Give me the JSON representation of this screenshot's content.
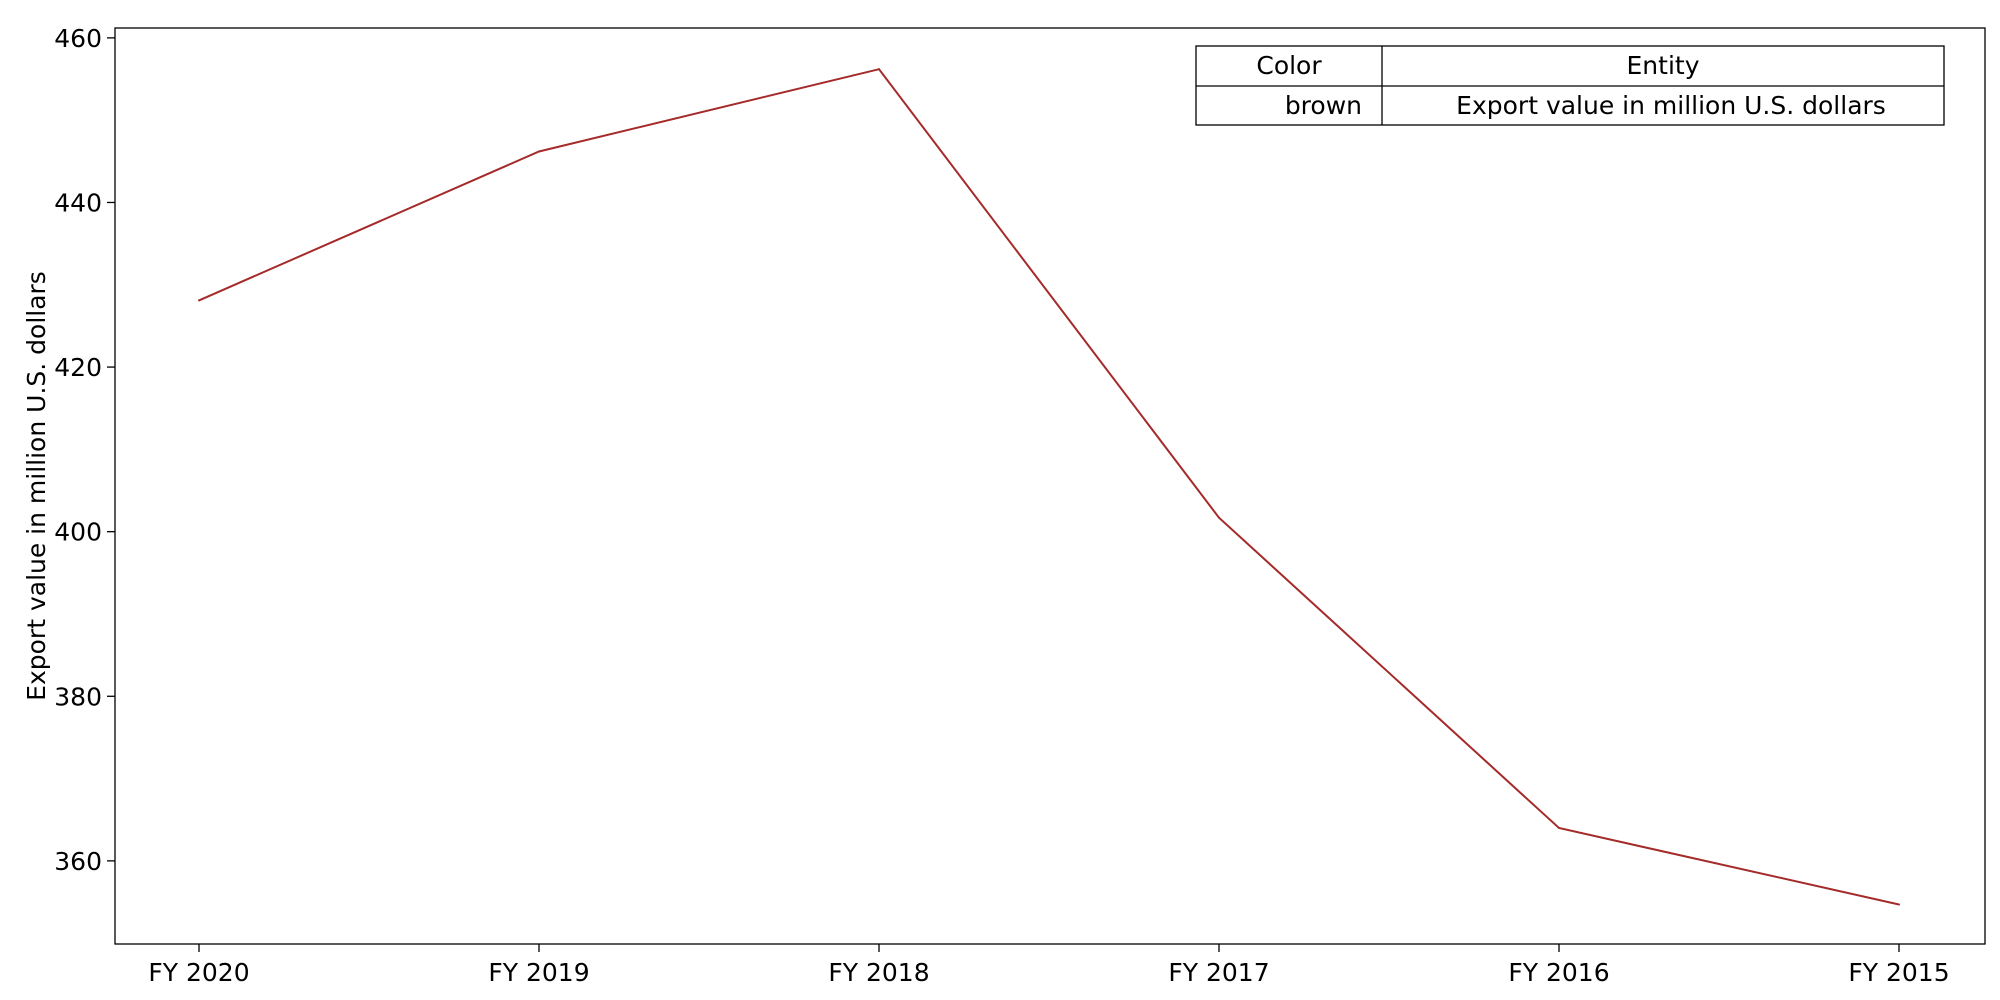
{
  "chart_data": {
    "type": "line",
    "categories": [
      "FY 2020",
      "FY 2019",
      "FY 2018",
      "FY 2017",
      "FY 2016",
      "FY 2015"
    ],
    "series": [
      {
        "name": "Export value in million U.S. dollars",
        "color": "#a52a2a",
        "values": [
          428.1,
          446.2,
          456.2,
          401.7,
          364.0,
          354.7
        ]
      }
    ],
    "xlabel": "",
    "ylabel": "Export value in million U.S. dollars",
    "ylim": [
      349.9,
      461.2
    ],
    "yticks": [
      360,
      380,
      400,
      420,
      440,
      460
    ],
    "grid": false,
    "legend": {
      "placement": "top-right",
      "style": "table",
      "headers": [
        "Color",
        "Entity"
      ],
      "rows": [
        [
          "brown",
          "Export value in million U.S. dollars"
        ]
      ]
    }
  }
}
